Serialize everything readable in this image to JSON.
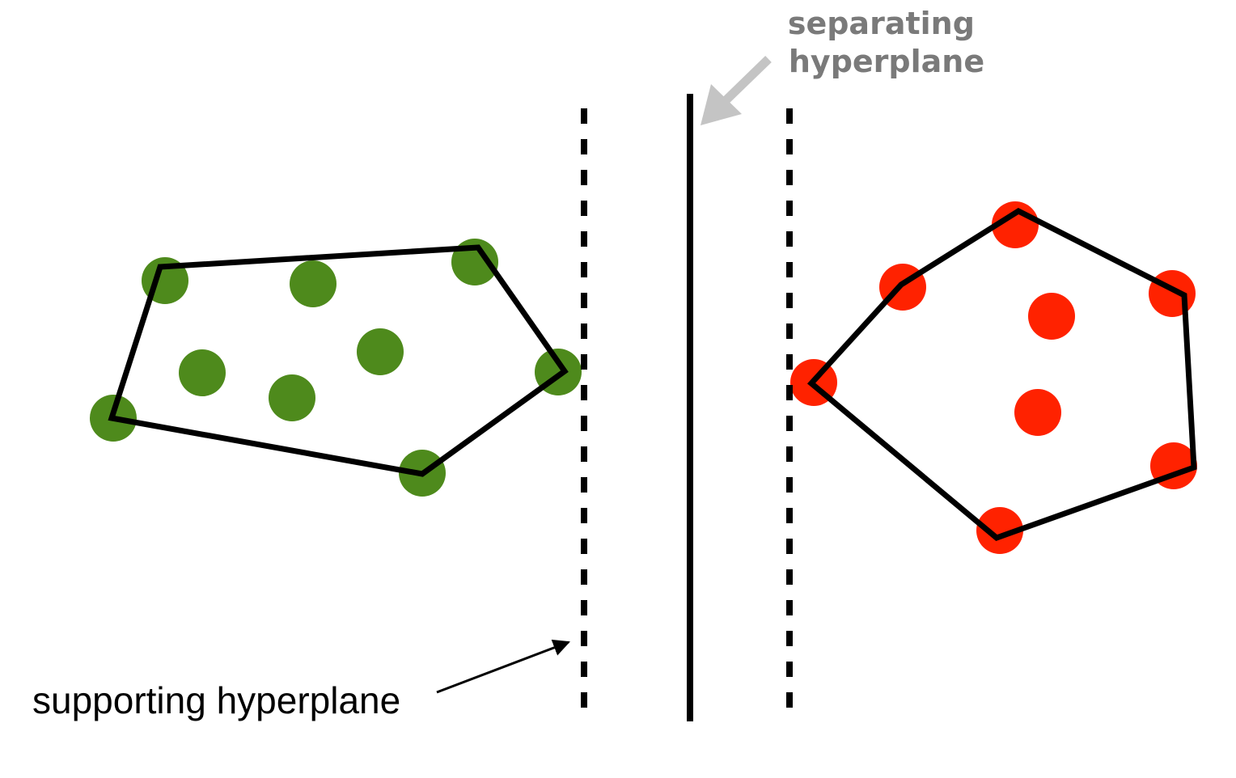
{
  "labels": {
    "separating_line1": "separating",
    "separating_line2": "hyperplane",
    "supporting": "supporting hyperplane"
  },
  "colors": {
    "green_points": "#4e8a1c",
    "red_points": "#ff2200",
    "hull_stroke": "#000000",
    "separating_label": "#7a7a7a",
    "separating_arrow": "#c4c4c4"
  }
}
